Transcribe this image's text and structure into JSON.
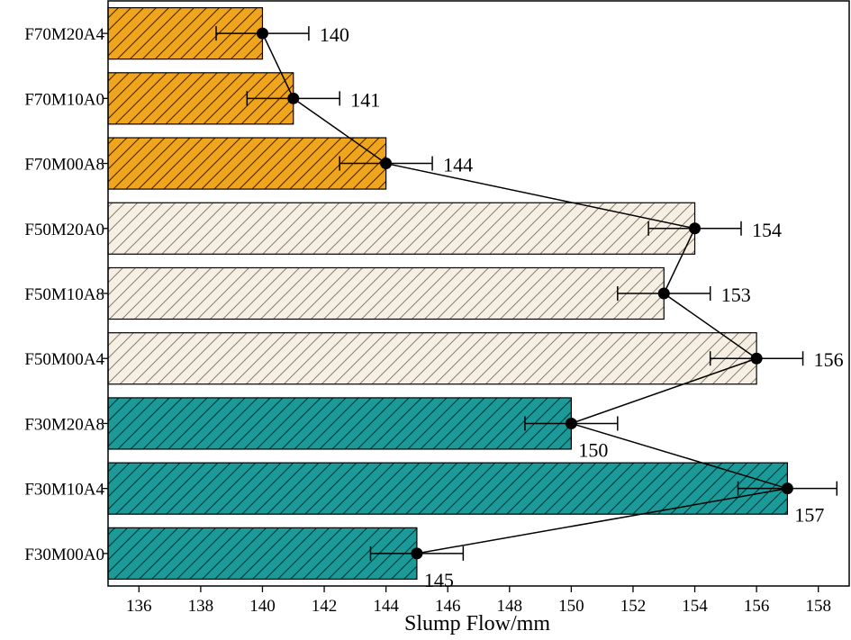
{
  "chart_data": {
    "type": "bar",
    "orientation": "horizontal",
    "categories": [
      "F70M20A4",
      "F70M10A0",
      "F70M00A8",
      "F50M20A0",
      "F50M10A8",
      "F50M00A4",
      "F30M20A8",
      "F30M10A4",
      "F30M00A0"
    ],
    "values": [
      140,
      141,
      144,
      154,
      153,
      156,
      150,
      157,
      145
    ],
    "errors": [
      1.5,
      1.5,
      1.5,
      1.5,
      1.5,
      1.5,
      1.5,
      1.6,
      1.5
    ],
    "groups": [
      "F70",
      "F70",
      "F70",
      "F50",
      "F50",
      "F50",
      "F30",
      "F30",
      "F30"
    ],
    "group_colors": {
      "F70": "#f0a51c",
      "F50": "#f6efe3",
      "F30": "#1a9a98"
    },
    "hatch": "diagonal",
    "connected_markers": true,
    "xlabel": "Slump Flow/mm",
    "ylabel": "",
    "xlim": [
      135,
      159
    ],
    "xticks": [
      136,
      138,
      140,
      142,
      144,
      146,
      148,
      150,
      152,
      154,
      156,
      158
    ],
    "grid": false,
    "legend": "none"
  }
}
